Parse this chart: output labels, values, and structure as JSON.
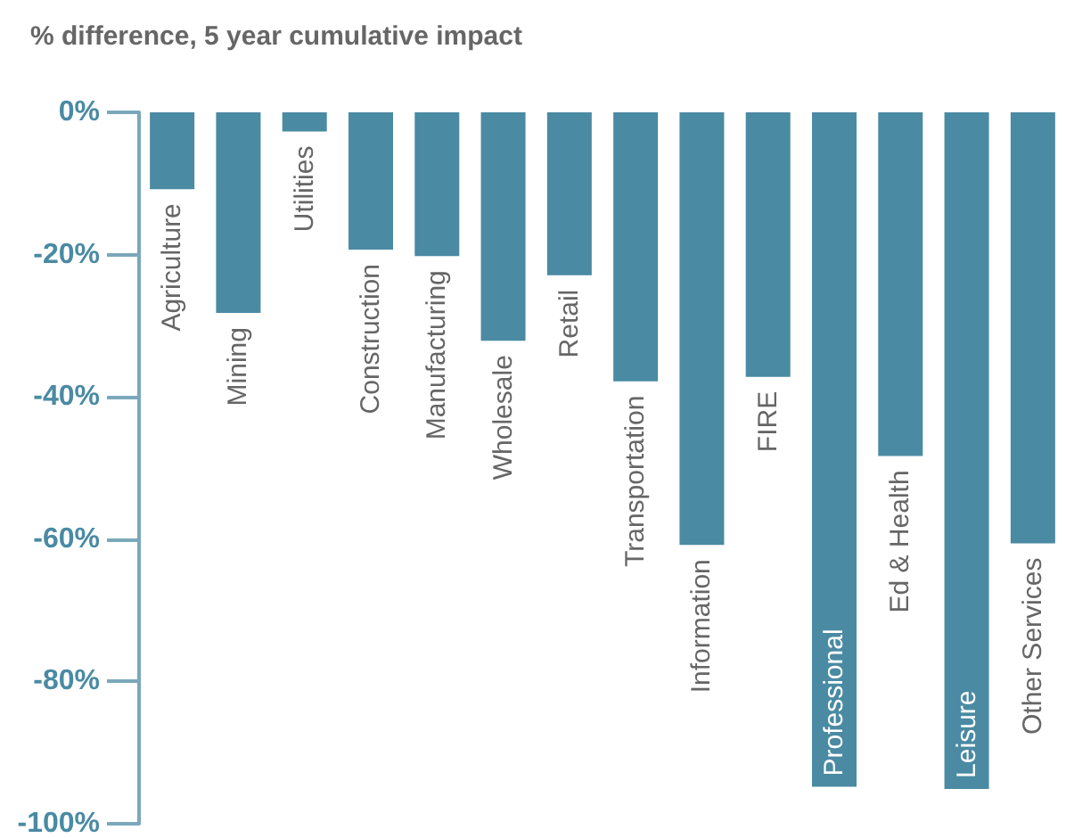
{
  "chart_data": {
    "type": "bar",
    "title": "% difference, 5 year cumulative impact",
    "categories": [
      "Agriculture",
      "Mining",
      "Utilities",
      "Construction",
      "Manufacturing",
      "Wholesale",
      "Retail",
      "Transportation",
      "Information",
      "FIRE",
      "Professional",
      "Ed & Health",
      "Leisure",
      "Other Services"
    ],
    "values": [
      -10.8,
      -28.2,
      -2.7,
      -19.3,
      -20.2,
      -32.1,
      -22.9,
      -37.8,
      -60.8,
      -37.2,
      -94.8,
      -48.3,
      -95.1,
      -60.6
    ],
    "color": "#4a8aa3",
    "ylim": [
      -100,
      0
    ],
    "yticks": [
      {
        "value": 0,
        "label": "0%"
      },
      {
        "value": -20,
        "label": "-20%"
      },
      {
        "value": -40,
        "label": "-40%"
      },
      {
        "value": -60,
        "label": "-60%"
      },
      {
        "value": -80,
        "label": "-80%"
      },
      {
        "value": -100,
        "label": "-100%"
      }
    ],
    "grid": false
  }
}
